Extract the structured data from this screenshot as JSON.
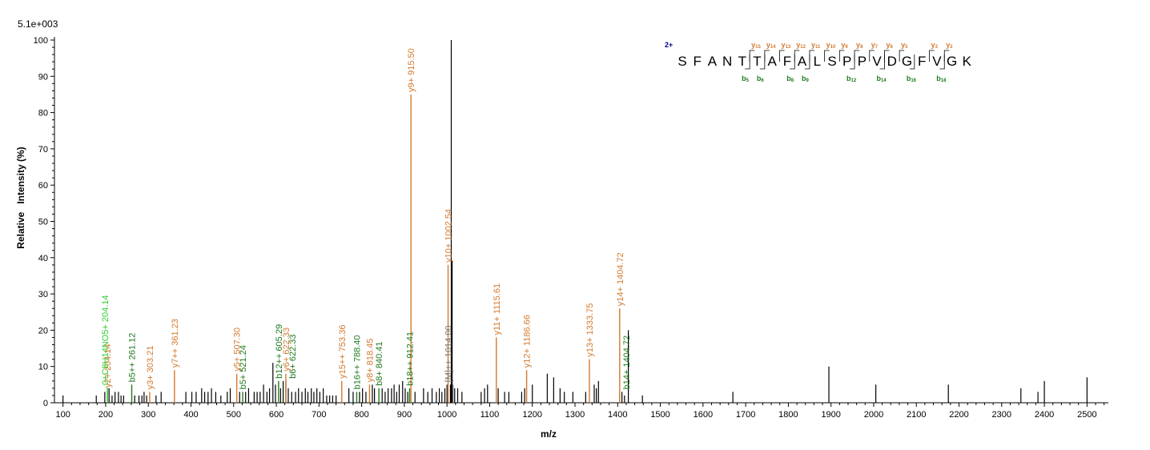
{
  "chart_data": {
    "type": "bar",
    "title": "",
    "scale_label": "5.1e+003",
    "xlabel": "m/z",
    "ylabel": "Relative   Intensity (%)",
    "xlim": [
      80,
      2550
    ],
    "ylim": [
      0,
      100
    ],
    "x_ticks": [
      100,
      200,
      300,
      400,
      500,
      600,
      700,
      800,
      900,
      1000,
      1100,
      1200,
      1300,
      1400,
      1500,
      1600,
      1700,
      1800,
      1900,
      2000,
      2100,
      2200,
      2300,
      2400,
      2500
    ],
    "y_ticks": [
      0,
      10,
      20,
      30,
      40,
      50,
      60,
      70,
      80,
      90,
      100
    ],
    "colors": {
      "y_ion": "#d47a2f",
      "b_ion": "#1f7a1f",
      "immonium": "#33cc33",
      "precursor": "#777777",
      "unassigned": "#000000",
      "charge": "#00008b"
    },
    "annotated_peaks": [
      {
        "mz": 204.14,
        "intensity": 3.5,
        "type": "y",
        "label": "y2+ 204.14"
      },
      {
        "mz": 204.14,
        "intensity": 4.2,
        "type": "immonium",
        "label": "0+C8H14NO5+ 204.14"
      },
      {
        "mz": 261.12,
        "intensity": 5,
        "type": "b",
        "label": "b5++ 261.12"
      },
      {
        "mz": 303.21,
        "intensity": 3,
        "type": "y",
        "label": "y3+ 303.21"
      },
      {
        "mz": 361.23,
        "intensity": 9,
        "type": "y",
        "label": "y7++ 361.23"
      },
      {
        "mz": 507.3,
        "intensity": 8,
        "type": "y",
        "label": "y5+ 507.30"
      },
      {
        "mz": 521.24,
        "intensity": 3,
        "type": "b",
        "label": "b5+ 521.24"
      },
      {
        "mz": 605.29,
        "intensity": 6,
        "type": "b",
        "label": "b12++ 605.29"
      },
      {
        "mz": 622.33,
        "intensity": 6,
        "type": "b",
        "label": "b6+ 622.33"
      },
      {
        "mz": 622.33,
        "intensity": 8,
        "type": "y",
        "label": "y6+ 622.33"
      },
      {
        "mz": 753.36,
        "intensity": 6,
        "type": "y",
        "label": "y15++ 753.36"
      },
      {
        "mz": 788.4,
        "intensity": 3,
        "type": "b",
        "label": "b16++ 788.40"
      },
      {
        "mz": 818.45,
        "intensity": 5,
        "type": "y",
        "label": "y8+ 818.45"
      },
      {
        "mz": 840.41,
        "intensity": 4,
        "type": "b",
        "label": "b8+ 840.41"
      },
      {
        "mz": 912.41,
        "intensity": 4,
        "type": "b",
        "label": "b18++ 912.41"
      },
      {
        "mz": 915.5,
        "intensity": 85,
        "type": "y",
        "label": "y9+ 915.50"
      },
      {
        "mz": 1002.54,
        "intensity": 38,
        "type": "y",
        "label": "y10+ 1002.54"
      },
      {
        "mz": 1014.0,
        "intensity": 5,
        "type": "precursor",
        "label": "[M]++ 1014.00"
      },
      {
        "mz": 1115.61,
        "intensity": 18,
        "type": "y",
        "label": "y11+ 1115.61"
      },
      {
        "mz": 1186.66,
        "intensity": 9,
        "type": "y",
        "label": "y12+ 1186.66"
      },
      {
        "mz": 1333.75,
        "intensity": 12,
        "type": "y",
        "label": "y13+ 1333.75"
      },
      {
        "mz": 1404.72,
        "intensity": 3,
        "type": "b",
        "label": "b14+ 1404.72"
      },
      {
        "mz": 1404.72,
        "intensity": 26,
        "type": "y",
        "label": "y14+ 1404.72"
      }
    ],
    "unassigned_peaks": [
      [
        100,
        2
      ],
      [
        178,
        2
      ],
      [
        198,
        3
      ],
      [
        208,
        4
      ],
      [
        215,
        2
      ],
      [
        222,
        3
      ],
      [
        230,
        3
      ],
      [
        236,
        2
      ],
      [
        242,
        2
      ],
      [
        268,
        2
      ],
      [
        278,
        2
      ],
      [
        285,
        2
      ],
      [
        290,
        3
      ],
      [
        296,
        2
      ],
      [
        318,
        2
      ],
      [
        330,
        3
      ],
      [
        388,
        3
      ],
      [
        402,
        3
      ],
      [
        412,
        3
      ],
      [
        425,
        4
      ],
      [
        432,
        3
      ],
      [
        440,
        3
      ],
      [
        448,
        4
      ],
      [
        458,
        3
      ],
      [
        470,
        2
      ],
      [
        485,
        3
      ],
      [
        492,
        4
      ],
      [
        514,
        3
      ],
      [
        528,
        3
      ],
      [
        535,
        4
      ],
      [
        548,
        3
      ],
      [
        555,
        3
      ],
      [
        562,
        3
      ],
      [
        570,
        5
      ],
      [
        578,
        3
      ],
      [
        584,
        4
      ],
      [
        592,
        11
      ],
      [
        598,
        5
      ],
      [
        610,
        4
      ],
      [
        616,
        6
      ],
      [
        628,
        4
      ],
      [
        636,
        3
      ],
      [
        645,
        3
      ],
      [
        652,
        4
      ],
      [
        660,
        3
      ],
      [
        668,
        4
      ],
      [
        674,
        3
      ],
      [
        682,
        4
      ],
      [
        688,
        3
      ],
      [
        695,
        4
      ],
      [
        702,
        3
      ],
      [
        710,
        4
      ],
      [
        718,
        2
      ],
      [
        725,
        2
      ],
      [
        732,
        2
      ],
      [
        740,
        2
      ],
      [
        770,
        4
      ],
      [
        780,
        3
      ],
      [
        795,
        3
      ],
      [
        802,
        4
      ],
      [
        810,
        3
      ],
      [
        825,
        5
      ],
      [
        830,
        4
      ],
      [
        848,
        4
      ],
      [
        855,
        3
      ],
      [
        862,
        4
      ],
      [
        870,
        4
      ],
      [
        876,
        5
      ],
      [
        882,
        3
      ],
      [
        888,
        5
      ],
      [
        896,
        6
      ],
      [
        902,
        4
      ],
      [
        908,
        3
      ],
      [
        925,
        3
      ],
      [
        945,
        4
      ],
      [
        955,
        3
      ],
      [
        965,
        4
      ],
      [
        975,
        3
      ],
      [
        982,
        4
      ],
      [
        988,
        3
      ],
      [
        995,
        4
      ],
      [
        1000,
        5
      ],
      [
        1008,
        5
      ],
      [
        1010,
        100
      ],
      [
        1012,
        39
      ],
      [
        1018,
        4
      ],
      [
        1025,
        4
      ],
      [
        1035,
        3
      ],
      [
        1080,
        3
      ],
      [
        1088,
        4
      ],
      [
        1095,
        5
      ],
      [
        1120,
        4
      ],
      [
        1135,
        3
      ],
      [
        1145,
        3
      ],
      [
        1175,
        3
      ],
      [
        1182,
        4
      ],
      [
        1200,
        5
      ],
      [
        1235,
        8
      ],
      [
        1250,
        7
      ],
      [
        1265,
        4
      ],
      [
        1275,
        3
      ],
      [
        1295,
        3
      ],
      [
        1325,
        3
      ],
      [
        1345,
        5
      ],
      [
        1350,
        4
      ],
      [
        1355,
        6
      ],
      [
        1410,
        3
      ],
      [
        1416,
        2
      ],
      [
        1425,
        20
      ],
      [
        1458,
        2
      ],
      [
        1670,
        3
      ],
      [
        1895,
        10
      ],
      [
        2005,
        5
      ],
      [
        2175,
        5
      ],
      [
        2345,
        4
      ],
      [
        2385,
        3
      ],
      [
        2400,
        6
      ],
      [
        2500,
        7
      ]
    ],
    "sequence": {
      "charge": "2+",
      "residues": [
        "S",
        "F",
        "A",
        "N",
        "T",
        "T",
        "A",
        "F",
        "A",
        "L",
        "S",
        "P",
        "P",
        "V",
        "D",
        "G",
        "F",
        "V",
        "G",
        "K"
      ],
      "y_ions": [
        {
          "label": "y",
          "num": "15",
          "after": 5
        },
        {
          "label": "y",
          "num": "14",
          "after": 6
        },
        {
          "label": "y",
          "num": "13",
          "after": 7
        },
        {
          "label": "y",
          "num": "12",
          "after": 8
        },
        {
          "label": "y",
          "num": "11",
          "after": 9
        },
        {
          "label": "y",
          "num": "10",
          "after": 10
        },
        {
          "label": "y",
          "num": "9",
          "after": 11
        },
        {
          "label": "y",
          "num": "8",
          "after": 12
        },
        {
          "label": "y",
          "num": "7",
          "after": 13
        },
        {
          "label": "y",
          "num": "6",
          "after": 14
        },
        {
          "label": "y",
          "num": "5",
          "after": 15
        },
        {
          "label": "y",
          "num": "3",
          "after": 17
        },
        {
          "label": "y",
          "num": "2",
          "after": 18
        }
      ],
      "b_ions": [
        {
          "label": "b",
          "num": "5",
          "after": 5
        },
        {
          "label": "b",
          "num": "6",
          "after": 6
        },
        {
          "label": "b",
          "num": "8",
          "after": 8
        },
        {
          "label": "b",
          "num": "9",
          "after": 9
        },
        {
          "label": "b",
          "num": "12",
          "after": 12
        },
        {
          "label": "b",
          "num": "14",
          "after": 14
        },
        {
          "label": "b",
          "num": "16",
          "after": 16
        },
        {
          "label": "b",
          "num": "18",
          "after": 18
        }
      ]
    }
  }
}
